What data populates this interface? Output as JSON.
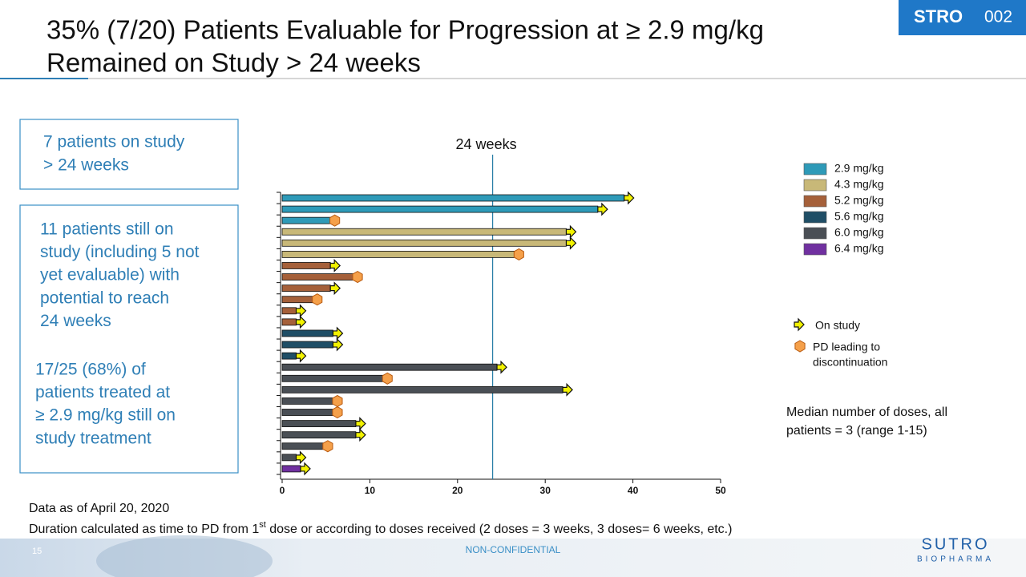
{
  "slide": {
    "title_lines": [
      "35% (7/20) Patients Evaluable for Progression at ≥ 2.9 mg/kg",
      "Remained on Study > 24 weeks"
    ],
    "badge": {
      "strong": "STRO",
      "light": "002"
    },
    "box1_lines": [
      "7 patients on study",
      "> 24 weeks"
    ],
    "box2_lines": [
      "11 patients still on",
      "study (including 5 not",
      "yet evaluable) with",
      "potential to reach",
      "24 weeks"
    ],
    "box3_lines": [
      "17/25 (68%) of",
      "patients treated at",
      "≥ 2.9 mg/kg still on",
      "study treatment"
    ],
    "note_date": "Data as of April 20, 2020",
    "note_duration": {
      "before": "Duration calculated as time to PD from 1",
      "sup": "st",
      "after": " dose or according to doses received (2 doses = 3 weeks, 3 doses= 6 weeks, etc.)"
    },
    "page_number": "15",
    "confidentiality": "NON-CONFIDENTIAL",
    "logo": {
      "name": "SUTRO",
      "sub": "BIOPHARMA"
    }
  },
  "chart_data": {
    "type": "swimmer",
    "categories": [
      null,
      null,
      null,
      null,
      null,
      null,
      null,
      null,
      null,
      null,
      null,
      null,
      null,
      null,
      null,
      null,
      null,
      null,
      null,
      null,
      null,
      null,
      null,
      null,
      null
    ],
    "series": [
      {
        "name": "2.9 mg/kg",
        "color": "#2e9ab8",
        "values": [
          39,
          36,
          6,
          null,
          null,
          null,
          null,
          null,
          null,
          null,
          null,
          null,
          null,
          null,
          null,
          null,
          null,
          null,
          null,
          null,
          null,
          null,
          null,
          null,
          null
        ]
      },
      {
        "name": "4.3 mg/kg",
        "color": "#c8b878",
        "values": [
          null,
          null,
          null,
          32.4,
          32.4,
          27,
          null,
          null,
          null,
          null,
          null,
          null,
          null,
          null,
          null,
          null,
          null,
          null,
          null,
          null,
          null,
          null,
          null,
          null,
          null
        ]
      },
      {
        "name": "5.2 mg/kg",
        "color": "#a5603a",
        "values": [
          null,
          null,
          null,
          null,
          null,
          null,
          5.5,
          8.6,
          5.5,
          4,
          1.6,
          1.6,
          null,
          null,
          null,
          null,
          null,
          null,
          null,
          null,
          null,
          null,
          null,
          null,
          null
        ]
      },
      {
        "name": "5.6 mg/kg",
        "color": "#1f4e66",
        "values": [
          null,
          null,
          null,
          null,
          null,
          null,
          null,
          null,
          null,
          null,
          null,
          null,
          5.8,
          5.8,
          1.6,
          null,
          null,
          null,
          null,
          null,
          null,
          null,
          null,
          null,
          null
        ]
      },
      {
        "name": "6.0 mg/kg",
        "color": "#4a4f55",
        "values": [
          null,
          null,
          null,
          null,
          null,
          null,
          null,
          null,
          null,
          null,
          null,
          null,
          null,
          null,
          null,
          24.5,
          12,
          32,
          6.3,
          6.3,
          8.4,
          8.4,
          5.2,
          1.6,
          null
        ]
      },
      {
        "name": "6.4 mg/kg",
        "color": "#7030a0",
        "values": [
          null,
          null,
          null,
          null,
          null,
          null,
          null,
          null,
          null,
          null,
          null,
          null,
          null,
          null,
          null,
          null,
          null,
          null,
          null,
          null,
          null,
          null,
          null,
          null,
          2.1
        ]
      }
    ],
    "ends": [
      "arrow",
      "arrow",
      "hexagon",
      "arrow",
      "arrow",
      "hexagon",
      "arrow",
      "hexagon",
      "arrow",
      "hexagon",
      "arrow",
      "arrow",
      "arrow",
      "arrow",
      "arrow",
      "arrow",
      "hexagon",
      "arrow",
      "hexagon",
      "hexagon",
      "arrow",
      "arrow",
      "hexagon",
      "arrow",
      "arrow"
    ],
    "end_legend": [
      {
        "shape": "arrow",
        "lines": [
          "On study"
        ]
      },
      {
        "shape": "hexagon",
        "lines": [
          "PD leading to",
          "discontinuation"
        ]
      }
    ],
    "reference_line": {
      "value": 24,
      "label": "24 weeks"
    },
    "annotation_lines": [
      "Median number of doses, all",
      "patients = 3 (range 1-15)"
    ],
    "xlim": [
      0,
      50
    ],
    "xticks": [
      0,
      10,
      20,
      30,
      40,
      50
    ]
  }
}
